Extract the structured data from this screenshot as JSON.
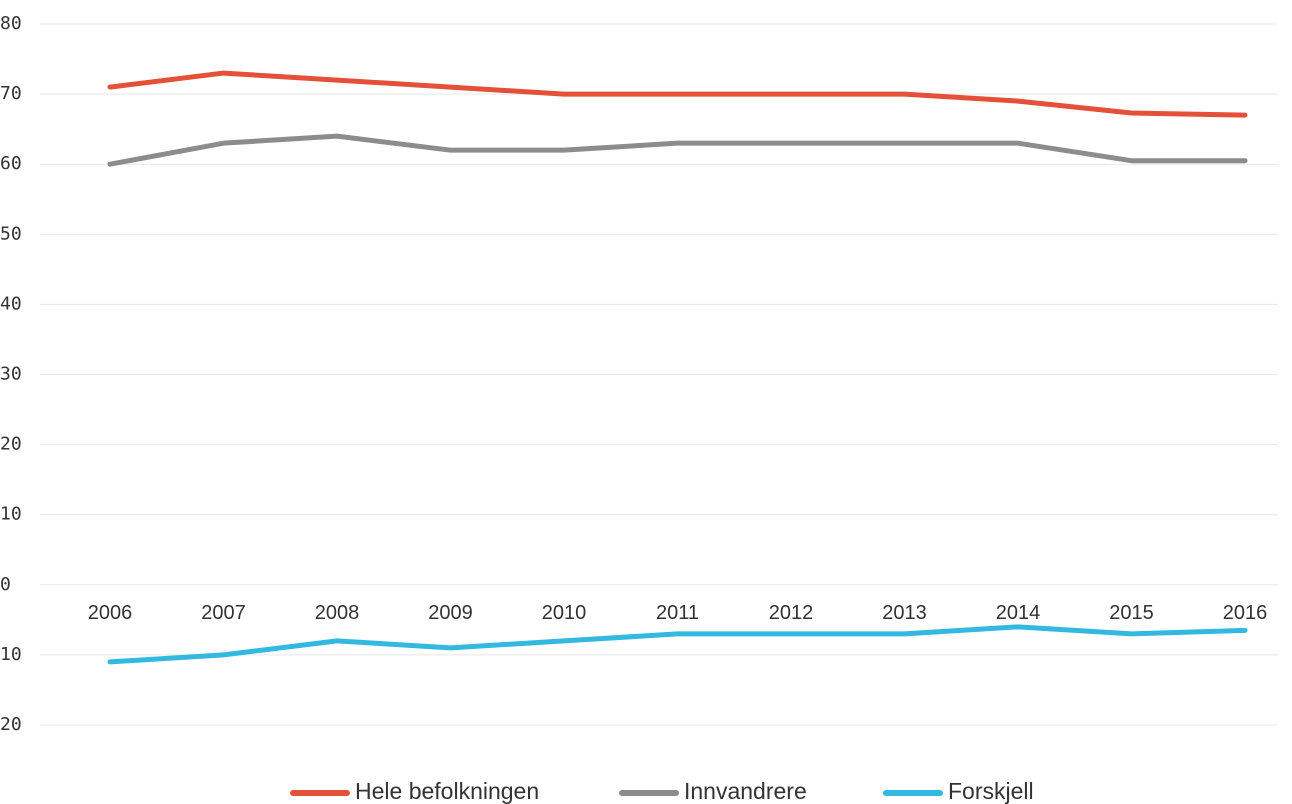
{
  "chart_data": {
    "type": "line",
    "categories": [
      "2006",
      "2007",
      "2008",
      "2009",
      "2010",
      "2011",
      "2012",
      "2013",
      "2014",
      "2015",
      "2016"
    ],
    "series": [
      {
        "name": "Hele befolkningen",
        "color": "#e4503a",
        "values": [
          71,
          73,
          72,
          71,
          70,
          70,
          70,
          70,
          69,
          67.3,
          67
        ]
      },
      {
        "name": "Innvandrere",
        "color": "#8c8c8c",
        "values": [
          60,
          63,
          64,
          62,
          62,
          63,
          63,
          63,
          63,
          60.5,
          60.5
        ]
      },
      {
        "name": "Forskjell",
        "color": "#33b8e0",
        "values": [
          -11,
          -10,
          -8,
          -9,
          -8,
          -7,
          -7,
          -7,
          -6,
          -7,
          -6.5
        ]
      }
    ],
    "ylim": [
      -20,
      80
    ],
    "yticks": [
      {
        "value": -20,
        "label": "20"
      },
      {
        "value": -10,
        "label": "10"
      },
      0,
      10,
      20,
      30,
      40,
      50,
      60,
      70,
      80
    ],
    "grid": true,
    "legend": "bottom"
  }
}
